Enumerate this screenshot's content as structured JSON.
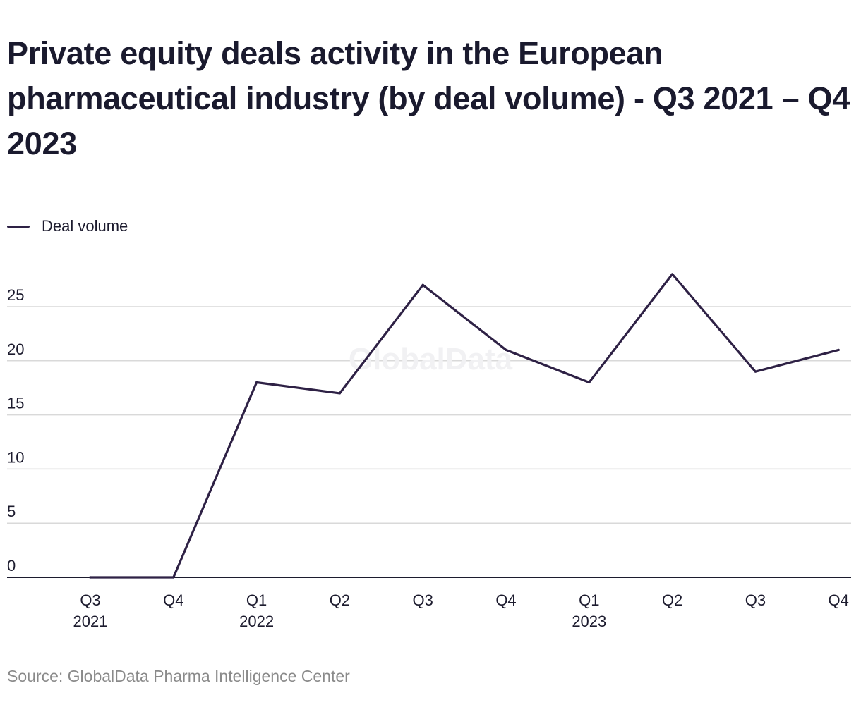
{
  "title": "Private equity deals activity in the European pharmaceutical industry (by deal volume) - Q3 2021 – Q4 2023",
  "source": "Source: GlobalData Pharma Intelligence Center",
  "watermark": "GlobalData",
  "colors": {
    "line": "#2e2145",
    "grid": "#d9d9d9",
    "axis": "#1c1b2e",
    "tick_text": "#1c1b2e",
    "watermark": "#f1f1f3"
  },
  "chart_data": {
    "type": "line",
    "title": "Private equity deals activity in the European pharmaceutical industry (by deal volume) - Q3 2021 – Q4 2023",
    "xlabel": "",
    "ylabel": "",
    "categories": [
      {
        "quarter": "Q3",
        "year": "2021"
      },
      {
        "quarter": "Q4",
        "year": ""
      },
      {
        "quarter": "Q1",
        "year": "2022"
      },
      {
        "quarter": "Q2",
        "year": ""
      },
      {
        "quarter": "Q3",
        "year": ""
      },
      {
        "quarter": "Q4",
        "year": ""
      },
      {
        "quarter": "Q1",
        "year": "2023"
      },
      {
        "quarter": "Q2",
        "year": ""
      },
      {
        "quarter": "Q3",
        "year": ""
      },
      {
        "quarter": "Q4",
        "year": ""
      }
    ],
    "series": [
      {
        "name": "Deal volume",
        "values": [
          0,
          0,
          18,
          17,
          27,
          21,
          18,
          28,
          19,
          21
        ]
      }
    ],
    "ylim": [
      0,
      28
    ],
    "yticks": [
      0,
      5,
      10,
      15,
      20,
      25
    ],
    "grid": true,
    "legend": "top-left"
  }
}
